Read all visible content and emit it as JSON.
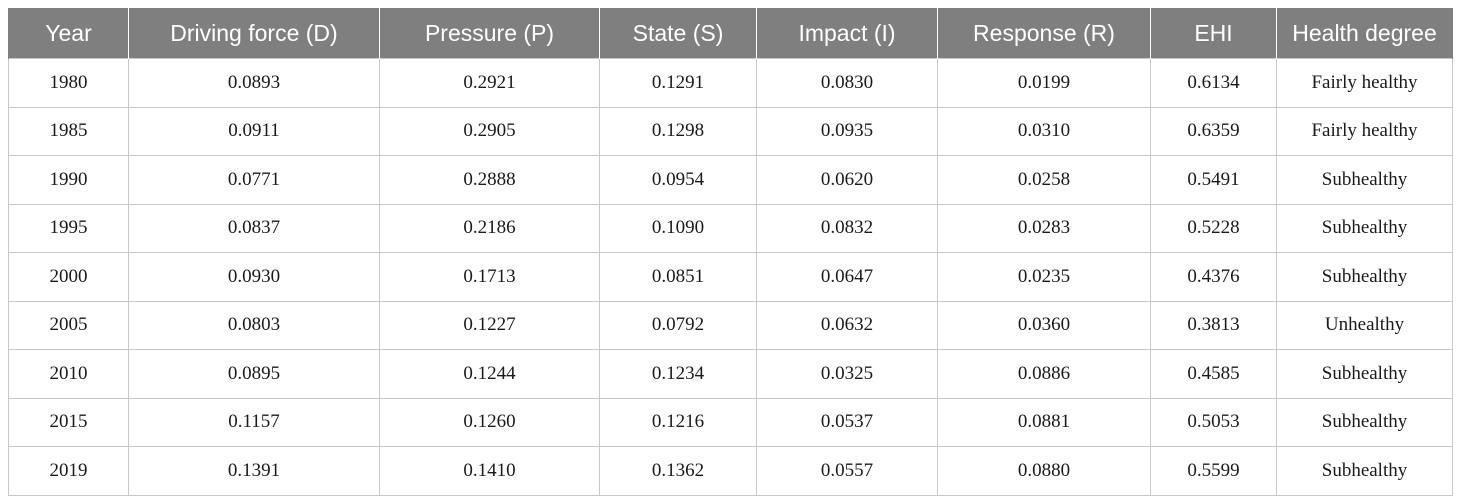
{
  "table": {
    "headers": [
      "Year",
      "Driving force (D)",
      "Pressure (P)",
      "State (S)",
      "Impact (I)",
      "Response (R)",
      "EHI",
      "Health degree"
    ],
    "rows": [
      [
        "1980",
        "0.0893",
        "0.2921",
        "0.1291",
        "0.0830",
        "0.0199",
        "0.6134",
        "Fairly healthy"
      ],
      [
        "1985",
        "0.0911",
        "0.2905",
        "0.1298",
        "0.0935",
        "0.0310",
        "0.6359",
        "Fairly healthy"
      ],
      [
        "1990",
        "0.0771",
        "0.2888",
        "0.0954",
        "0.0620",
        "0.0258",
        "0.5491",
        "Subhealthy"
      ],
      [
        "1995",
        "0.0837",
        "0.2186",
        "0.1090",
        "0.0832",
        "0.0283",
        "0.5228",
        "Subhealthy"
      ],
      [
        "2000",
        "0.0930",
        "0.1713",
        "0.0851",
        "0.0647",
        "0.0235",
        "0.4376",
        "Subhealthy"
      ],
      [
        "2005",
        "0.0803",
        "0.1227",
        "0.0792",
        "0.0632",
        "0.0360",
        "0.3813",
        "Unhealthy"
      ],
      [
        "2010",
        "0.0895",
        "0.1244",
        "0.1234",
        "0.0325",
        "0.0886",
        "0.4585",
        "Subhealthy"
      ],
      [
        "2015",
        "0.1157",
        "0.1260",
        "0.1216",
        "0.0537",
        "0.0881",
        "0.5053",
        "Subhealthy"
      ],
      [
        "2019",
        "0.1391",
        "0.1410",
        "0.1362",
        "0.0557",
        "0.0880",
        "0.5599",
        "Subhealthy"
      ]
    ]
  },
  "colors": {
    "header_bg": "#7f7f7f",
    "header_text": "#ffffff",
    "grid_line": "#c8c8c8"
  }
}
